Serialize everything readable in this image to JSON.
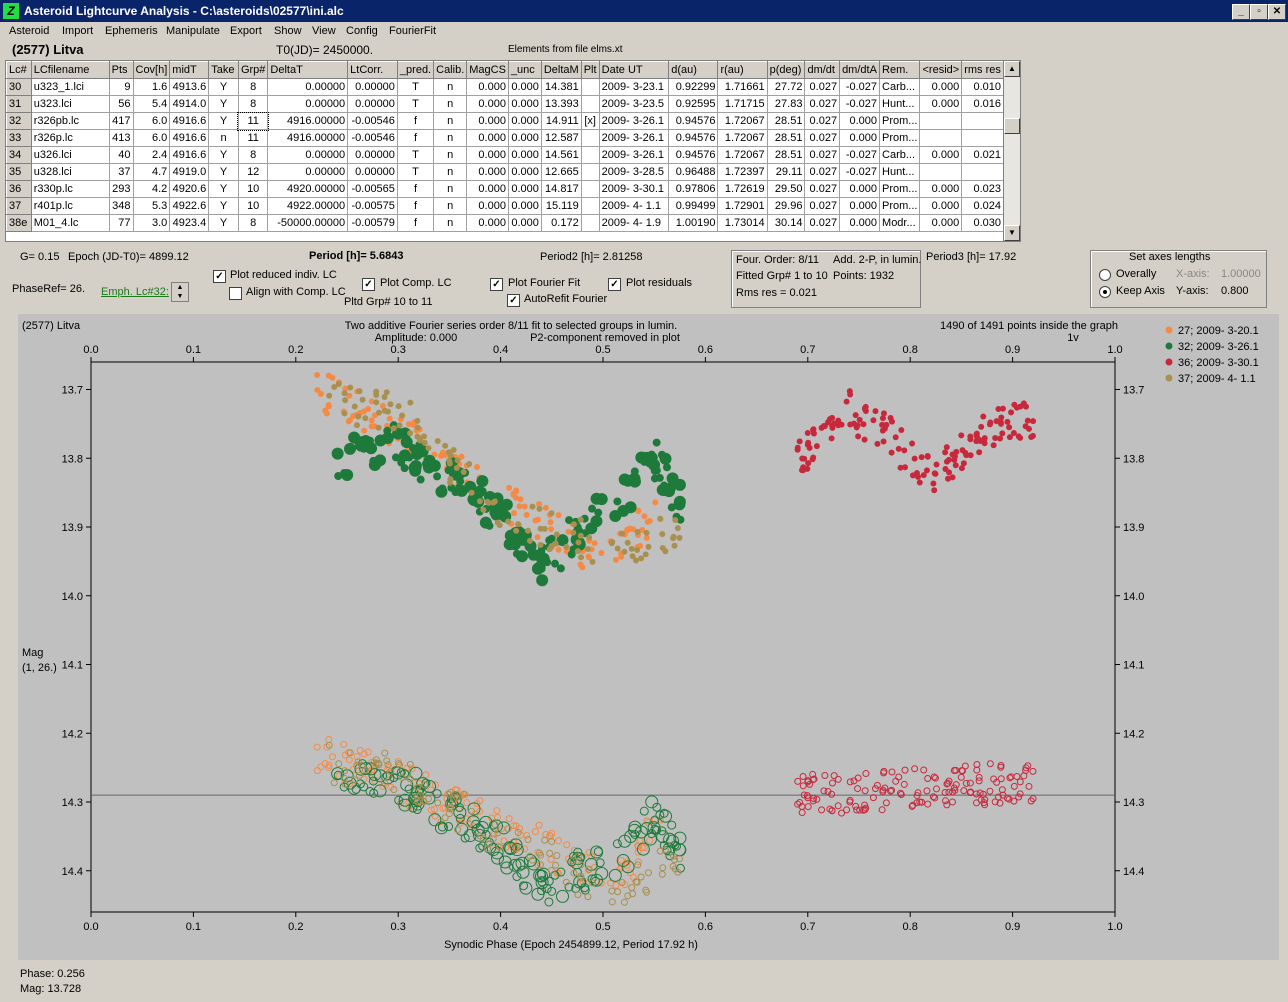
{
  "window": {
    "title": "Asteroid Lightcurve Analysis - C:\\asteroids\\02577\\ini.alc",
    "btn_min": "_",
    "btn_max": "▫",
    "btn_close": "✕",
    "icon": "app-icon"
  },
  "menu": [
    "Asteroid",
    "Import",
    "Ephemeris",
    "Manipulate",
    "Export",
    "Show",
    "View",
    "Config",
    "FourierFit"
  ],
  "header": {
    "asteroid": "(2577) Litva",
    "t0": "T0(JD)= 2450000.",
    "elements": "Elements from file elms.xt"
  },
  "table": {
    "columns": [
      "Lc#",
      "LCfilename",
      "Pts",
      "Cov[h]",
      "midT",
      "Take",
      "Grp#",
      "DeltaT",
      "LtCorr.",
      "_pred.",
      "Calib.",
      "MagCS",
      "_unc",
      "DeltaM",
      "Plt",
      "Date UT",
      "d(au)",
      "r(au)",
      "p(deg)",
      "dm/dt",
      "dm/dtA",
      "Rem.",
      "<resid>",
      "rms res"
    ],
    "rows": [
      [
        "30",
        "u323_1.lci",
        "9",
        "1.6",
        "4913.6",
        "Y",
        "8",
        "0.00000",
        "0.00000",
        "T",
        "n",
        "0.000",
        "0.000",
        "14.381",
        "",
        "2009- 3-23.1",
        "0.92299",
        "1.71661",
        "27.72",
        "0.027",
        "-0.027",
        "Carb...",
        "0.000",
        "0.010"
      ],
      [
        "31",
        "u323.lci",
        "56",
        "5.4",
        "4914.0",
        "Y",
        "8",
        "0.00000",
        "0.00000",
        "T",
        "n",
        "0.000",
        "0.000",
        "13.393",
        "",
        "2009- 3-23.5",
        "0.92595",
        "1.71715",
        "27.83",
        "0.027",
        "-0.027",
        "Hunt...",
        "0.000",
        "0.016"
      ],
      [
        "32",
        "r326pb.lc",
        "417",
        "6.0",
        "4916.6",
        "Y",
        "11",
        "4916.00000",
        "-0.00546",
        "f",
        "n",
        "0.000",
        "0.000",
        "14.911",
        "[x]",
        "2009- 3-26.1",
        "0.94576",
        "1.72067",
        "28.51",
        "0.027",
        "0.000",
        "Prom...",
        "",
        ""
      ],
      [
        "33",
        "r326p.lc",
        "413",
        "6.0",
        "4916.6",
        "n",
        "11",
        "4916.00000",
        "-0.00546",
        "f",
        "n",
        "0.000",
        "0.000",
        "12.587",
        "",
        "2009- 3-26.1",
        "0.94576",
        "1.72067",
        "28.51",
        "0.027",
        "0.000",
        "Prom...",
        "",
        ""
      ],
      [
        "34",
        "u326.lci",
        "40",
        "2.4",
        "4916.6",
        "Y",
        "8",
        "0.00000",
        "0.00000",
        "T",
        "n",
        "0.000",
        "0.000",
        "14.561",
        "",
        "2009- 3-26.1",
        "0.94576",
        "1.72067",
        "28.51",
        "0.027",
        "-0.027",
        "Carb...",
        "0.000",
        "0.021"
      ],
      [
        "35",
        "u328.lci",
        "37",
        "4.7",
        "4919.0",
        "Y",
        "12",
        "0.00000",
        "0.00000",
        "T",
        "n",
        "0.000",
        "0.000",
        "12.665",
        "",
        "2009- 3-28.5",
        "0.96488",
        "1.72397",
        "29.11",
        "0.027",
        "-0.027",
        "Hunt...",
        "",
        ""
      ],
      [
        "36",
        "r330p.lc",
        "293",
        "4.2",
        "4920.6",
        "Y",
        "10",
        "4920.00000",
        "-0.00565",
        "f",
        "n",
        "0.000",
        "0.000",
        "14.817",
        "",
        "2009- 3-30.1",
        "0.97806",
        "1.72619",
        "29.50",
        "0.027",
        "0.000",
        "Prom...",
        "0.000",
        "0.023"
      ],
      [
        "37",
        "r401p.lc",
        "348",
        "5.3",
        "4922.6",
        "Y",
        "10",
        "4922.00000",
        "-0.00575",
        "f",
        "n",
        "0.000",
        "0.000",
        "15.119",
        "",
        "2009- 4- 1.1",
        "0.99499",
        "1.72901",
        "29.96",
        "0.027",
        "0.000",
        "Prom...",
        "0.000",
        "0.024"
      ],
      [
        "38e",
        "M01_4.lc",
        "77",
        "3.0",
        "4923.4",
        "Y",
        "8",
        "-50000.00000",
        "-0.00579",
        "f",
        "n",
        "0.000",
        "0.000",
        "0.172",
        "",
        "2009- 4- 1.9",
        "1.00190",
        "1.73014",
        "30.14",
        "0.027",
        "0.000",
        "Modr...",
        "0.000",
        "0.030"
      ]
    ]
  },
  "info": {
    "g": "G= 0.15",
    "epoch": "Epoch (JD-T0)= 4899.12",
    "period": "Period [h]= 5.6843",
    "period2": "Period2 [h]= 2.81258",
    "period3": "Period3 [h]= 17.92",
    "phaseref": "PhaseRef= 26.",
    "emph_link": "Emph. Lc#32:",
    "chk_reduced": "Plot reduced indiv. LC",
    "chk_align": "Align with Comp. LC",
    "chk_comp": "Plot Comp. LC",
    "pltd_grp": "Pltd Grp#  10 to   11",
    "chk_fourier": "Plot Fourier Fit",
    "chk_autorefit": "AutoRefit Fourier",
    "chk_residuals": "Plot residuals",
    "four_order": "Four. Order:  8/11",
    "add2p": "Add. 2-P, in lumin.",
    "fitted_grp": "Fitted Grp# 1 to 10",
    "points": "Points: 1932",
    "rms_res": "Rms res     = 0.021"
  },
  "axes_box": {
    "title": "Set axes lengths",
    "overally": "Overally",
    "keep_axis": "Keep Axis",
    "xaxis_label": "X-axis:",
    "xaxis_val": "1.00000",
    "yaxis_label": "Y-axis:",
    "yaxis_val": "0.800"
  },
  "plot": {
    "name": "(2577) Litva",
    "desc1": "Two additive Fourier series order 8/11 fit to selected groups in lumin.",
    "desc2": "Amplitude: 0.000",
    "desc3": "P2-component removed in plot",
    "points_info": "1490 of 1491 points inside the graph",
    "points_info2": "1v",
    "ylabel": "Mag",
    "ylabel2": "(1, 26.)",
    "xlabel": "Synodic Phase (Epoch 2454899.12, Period 17.92 h)",
    "legend": [
      {
        "label": "27; 2009- 3-20.1",
        "color": "#f58a46"
      },
      {
        "label": "32; 2009- 3-26.1",
        "color": "#1e7a3a"
      },
      {
        "label": "36; 2009- 3-30.1",
        "color": "#c8283c"
      },
      {
        "label": "37; 2009- 4- 1.1",
        "color": "#a89050"
      }
    ]
  },
  "chart_data": {
    "type": "scatter",
    "xlim": [
      0.0,
      1.0
    ],
    "ylim": [
      14.46,
      13.66
    ],
    "x_ticks": [
      "0.0",
      "0.1",
      "0.2",
      "0.3",
      "0.4",
      "0.5",
      "0.6",
      "0.7",
      "0.8",
      "0.9",
      "1.0"
    ],
    "y_ticks": [
      "13.7",
      "13.8",
      "13.9",
      "14.0",
      "14.1",
      "14.2",
      "14.3",
      "14.4"
    ],
    "reference_line_y": 14.29,
    "series": [
      {
        "name": "27; 2009- 3-20.1",
        "color": "#f58a46",
        "phase_range": [
          0.22,
          0.56
        ],
        "upper_mag": [
          [
            0.22,
            13.7
          ],
          [
            0.3,
            13.76
          ],
          [
            0.4,
            13.86
          ],
          [
            0.48,
            13.93
          ],
          [
            0.52,
            13.93
          ],
          [
            0.56,
            13.86
          ]
        ],
        "lower_mag": [
          [
            0.22,
            14.23
          ],
          [
            0.3,
            14.27
          ],
          [
            0.4,
            14.34
          ],
          [
            0.48,
            14.39
          ],
          [
            0.52,
            14.4
          ],
          [
            0.56,
            14.32
          ]
        ]
      },
      {
        "name": "32; 2009- 3-26.1",
        "color": "#1e7a3a",
        "phase_range": [
          0.24,
          0.58
        ],
        "upper_mag": [
          [
            0.24,
            13.8
          ],
          [
            0.3,
            13.78
          ],
          [
            0.4,
            13.88
          ],
          [
            0.44,
            13.96
          ],
          [
            0.48,
            13.9
          ],
          [
            0.52,
            13.86
          ],
          [
            0.55,
            13.8
          ],
          [
            0.58,
            13.88
          ]
        ],
        "lower_mag": [
          [
            0.24,
            14.25
          ],
          [
            0.3,
            14.27
          ],
          [
            0.4,
            14.36
          ],
          [
            0.44,
            14.42
          ],
          [
            0.48,
            14.4
          ],
          [
            0.52,
            14.38
          ],
          [
            0.55,
            14.32
          ],
          [
            0.58,
            14.38
          ]
        ]
      },
      {
        "name": "36; 2009- 3-30.1",
        "color": "#c8283c",
        "phase_range": [
          0.69,
          0.92
        ],
        "upper_mag": [
          [
            0.69,
            13.8
          ],
          [
            0.74,
            13.73
          ],
          [
            0.78,
            13.77
          ],
          [
            0.82,
            13.83
          ],
          [
            0.86,
            13.78
          ],
          [
            0.9,
            13.74
          ],
          [
            0.92,
            13.75
          ]
        ],
        "lower_mag": [
          [
            0.69,
            14.29
          ],
          [
            0.92,
            14.27
          ]
        ]
      },
      {
        "name": "37; 2009- 4- 1.1",
        "color": "#a89050",
        "phase_range": [
          0.23,
          0.58
        ],
        "upper_mag": [
          [
            0.23,
            13.72
          ],
          [
            0.3,
            13.73
          ],
          [
            0.4,
            13.88
          ],
          [
            0.48,
            13.92
          ],
          [
            0.52,
            13.94
          ],
          [
            0.58,
            13.9
          ]
        ],
        "lower_mag": [
          [
            0.23,
            14.24
          ],
          [
            0.3,
            14.26
          ],
          [
            0.4,
            14.35
          ],
          [
            0.48,
            14.41
          ],
          [
            0.52,
            14.42
          ],
          [
            0.58,
            14.38
          ]
        ]
      }
    ]
  },
  "status": {
    "phase": "Phase:  0.256",
    "mag": "Mag:    13.728"
  }
}
